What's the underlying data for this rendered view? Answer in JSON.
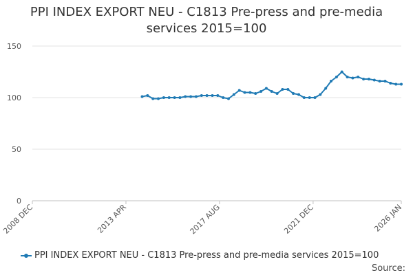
{
  "chart_data": {
    "type": "line",
    "title_line1": "PPI INDEX EXPORT NEU - C1813 Pre-press and pre-media",
    "title_line2": "services 2015=100",
    "xlabel": "",
    "ylabel": "",
    "ylim": [
      0,
      150
    ],
    "yticks": [
      "0",
      "50",
      "100",
      "150"
    ],
    "xticks": [
      "2008 DEC",
      "2013 APR",
      "2017 AUG",
      "2021 DEC",
      "2026 JAN"
    ],
    "grid": true,
    "legend_position": "bottom-left",
    "legend_label": "PPI INDEX EXPORT NEU - C1813 Pre-press and pre-media services 2015=100",
    "source_label": "Source:",
    "series_color": "#1f7ab4",
    "series": [
      {
        "name": "PPI INDEX EXPORT NEU - C1813 Pre-press and pre-media services 2015=100",
        "x": [
          "2014-01",
          "2014-04",
          "2014-07",
          "2014-10",
          "2015-01",
          "2015-04",
          "2015-07",
          "2015-10",
          "2016-01",
          "2016-04",
          "2016-07",
          "2016-10",
          "2017-01",
          "2017-04",
          "2017-07",
          "2017-10",
          "2018-01",
          "2018-04",
          "2018-07",
          "2018-10",
          "2019-01",
          "2019-04",
          "2019-07",
          "2019-10",
          "2020-01",
          "2020-04",
          "2020-07",
          "2020-10",
          "2021-01",
          "2021-04",
          "2021-07",
          "2021-10",
          "2022-01",
          "2022-04",
          "2022-07",
          "2022-10",
          "2023-01",
          "2023-04",
          "2023-07",
          "2023-10",
          "2024-01",
          "2024-04",
          "2024-07",
          "2024-10",
          "2025-01",
          "2025-04",
          "2025-07",
          "2025-10",
          "2026-01"
        ],
        "values": [
          101,
          102,
          99,
          99,
          100,
          100,
          100,
          100,
          101,
          101,
          101,
          102,
          102,
          102,
          102,
          100,
          99,
          103,
          107,
          105,
          105,
          104,
          106,
          109,
          106,
          104,
          108,
          108,
          104,
          103,
          100,
          100,
          100,
          103,
          109,
          116,
          120,
          125,
          120,
          119,
          120,
          118,
          118,
          117,
          116,
          116,
          114,
          113,
          113
        ]
      }
    ]
  }
}
